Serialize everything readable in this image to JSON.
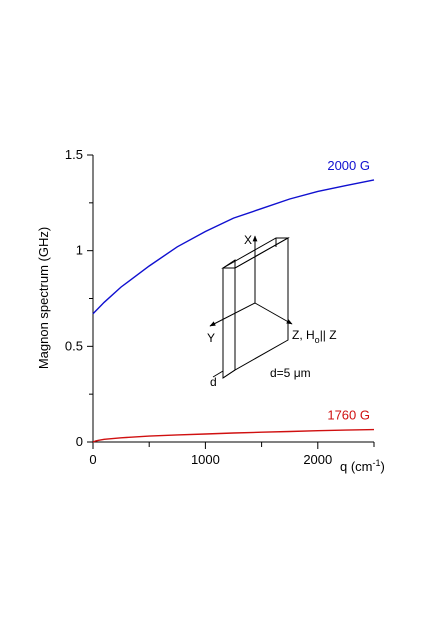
{
  "chart_data": {
    "type": "line",
    "title": "",
    "xlabel": "q (cm",
    "xlabel_sup": "-1",
    "xlabel_close": ")",
    "ylabel": "Magnon spectrum (GHz)",
    "xlim": [
      0,
      2500
    ],
    "ylim": [
      0,
      1.5
    ],
    "x_ticks": [
      0,
      500,
      1000,
      1500,
      2000,
      2500
    ],
    "x_tick_labels": [
      "0",
      "",
      "1000",
      "",
      "2000",
      ""
    ],
    "y_ticks": [
      0,
      0.25,
      0.5,
      0.75,
      1,
      1.25,
      1.5
    ],
    "y_tick_labels": [
      "0",
      "",
      "0.5",
      "",
      "1",
      "",
      "1.5"
    ],
    "grid": false,
    "series": [
      {
        "name": "2000 G",
        "color": "#1010d0",
        "x": [
          0,
          100,
          250,
          500,
          750,
          1000,
          1250,
          1500,
          1750,
          2000,
          2250,
          2500
        ],
        "y": [
          0.67,
          0.73,
          0.81,
          0.92,
          1.02,
          1.1,
          1.17,
          1.22,
          1.27,
          1.31,
          1.34,
          1.37
        ]
      },
      {
        "name": "1760 G",
        "color": "#d01010",
        "x": [
          0,
          25,
          50,
          100,
          250,
          500,
          750,
          1000,
          1250,
          1500,
          1750,
          2000,
          2250,
          2500
        ],
        "y": [
          0,
          0.006,
          0.009,
          0.014,
          0.022,
          0.031,
          0.037,
          0.042,
          0.047,
          0.051,
          0.055,
          0.059,
          0.062,
          0.065
        ]
      }
    ],
    "inset": {
      "axis_x": "X",
      "axis_y": "Y",
      "axis_z_prefix": "Z, H",
      "axis_z_sub": "o",
      "axis_z_suffix": "|| Z",
      "thickness_label": "d",
      "thickness_value": "d=5 μm"
    }
  }
}
